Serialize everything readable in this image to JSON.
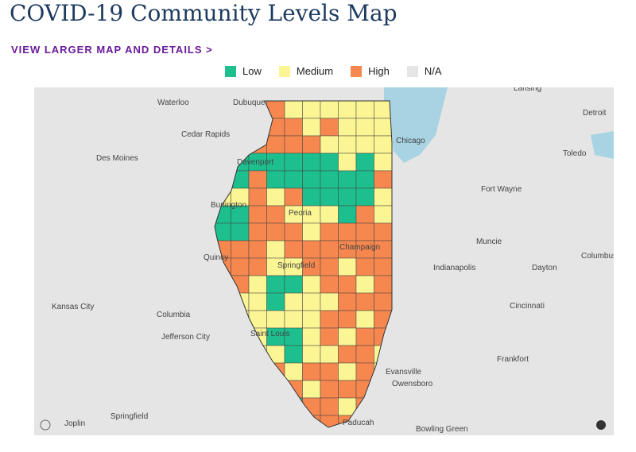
{
  "header": {
    "title": "COVID-19 Community Levels Map",
    "link": "VIEW LARGER MAP AND DETAILS >"
  },
  "legend": {
    "items": [
      {
        "label": "Low",
        "color": "#1dbf8e"
      },
      {
        "label": "Medium",
        "color": "#fbf593"
      },
      {
        "label": "High",
        "color": "#f5874f"
      },
      {
        "label": "N/A",
        "color": "#e5e5e5"
      }
    ]
  },
  "map": {
    "labels": [
      "Waterloo",
      "Dubuque",
      "Cedar Rapids",
      "Des Moines",
      "Davenport",
      "Chicago",
      "Detroit",
      "Toledo",
      "Fort Wayne",
      "Burlington",
      "Peoria",
      "Muncie",
      "Quincy",
      "Champaign",
      "Springfield",
      "Indianapolis",
      "Dayton",
      "Columbus",
      "Kansas City",
      "Columbia",
      "Cincinnati",
      "Jefferson City",
      "Saint Louis",
      "Frankfort",
      "Evansville",
      "Owensboro",
      "Joplin",
      "Springfield",
      "Paducah",
      "Bowling Green",
      "Lansing"
    ]
  }
}
